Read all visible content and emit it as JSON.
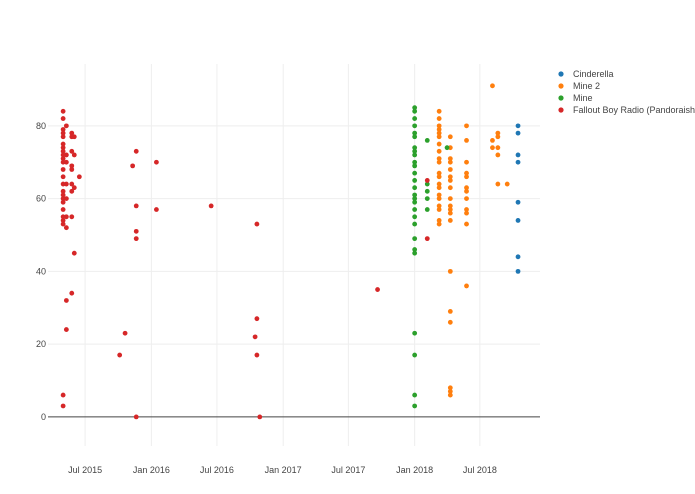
{
  "chart_data": {
    "type": "scatter",
    "title": "",
    "xlabel": "",
    "ylabel": "",
    "x_range": [
      "2015-03-20",
      "2018-12-15"
    ],
    "y_range": [
      -8,
      97
    ],
    "x_ticks": [
      {
        "date": "2015-07-01",
        "label": "Jul 2015"
      },
      {
        "date": "2016-01-01",
        "label": "Jan 2016"
      },
      {
        "date": "2016-07-01",
        "label": "Jul 2016"
      },
      {
        "date": "2017-01-01",
        "label": "Jan 2017"
      },
      {
        "date": "2017-07-01",
        "label": "Jul 2017"
      },
      {
        "date": "2018-01-01",
        "label": "Jan 2018"
      },
      {
        "date": "2018-07-01",
        "label": "Jul 2018"
      }
    ],
    "y_ticks": [
      0,
      20,
      40,
      60,
      80
    ],
    "grid": true,
    "legend_position": "top-right",
    "series": [
      {
        "name": "Cinderella",
        "color": "#1f77b4",
        "points": [
          [
            "2018-10-15",
            80
          ],
          [
            "2018-10-15",
            78
          ],
          [
            "2018-10-15",
            72
          ],
          [
            "2018-10-15",
            70
          ],
          [
            "2018-10-15",
            59
          ],
          [
            "2018-10-15",
            54
          ],
          [
            "2018-10-15",
            44
          ],
          [
            "2018-10-15",
            40
          ]
        ]
      },
      {
        "name": "Mine 2",
        "color": "#ff7f0e",
        "points": [
          [
            "2018-03-10",
            84
          ],
          [
            "2018-03-10",
            82
          ],
          [
            "2018-03-10",
            80
          ],
          [
            "2018-03-10",
            79
          ],
          [
            "2018-03-10",
            78
          ],
          [
            "2018-03-10",
            77
          ],
          [
            "2018-03-10",
            75
          ],
          [
            "2018-03-10",
            73
          ],
          [
            "2018-03-10",
            71
          ],
          [
            "2018-03-10",
            70
          ],
          [
            "2018-03-10",
            67
          ],
          [
            "2018-03-10",
            66
          ],
          [
            "2018-03-10",
            64
          ],
          [
            "2018-03-10",
            63
          ],
          [
            "2018-03-10",
            61
          ],
          [
            "2018-03-10",
            60
          ],
          [
            "2018-03-10",
            58
          ],
          [
            "2018-03-10",
            57
          ],
          [
            "2018-03-10",
            54
          ],
          [
            "2018-03-10",
            53
          ],
          [
            "2018-04-10",
            77
          ],
          [
            "2018-04-10",
            74
          ],
          [
            "2018-04-10",
            71
          ],
          [
            "2018-04-10",
            70
          ],
          [
            "2018-04-10",
            68
          ],
          [
            "2018-04-10",
            66
          ],
          [
            "2018-04-10",
            65
          ],
          [
            "2018-04-10",
            63
          ],
          [
            "2018-04-10",
            60
          ],
          [
            "2018-04-10",
            58
          ],
          [
            "2018-04-10",
            57
          ],
          [
            "2018-04-10",
            56
          ],
          [
            "2018-04-10",
            54
          ],
          [
            "2018-04-10",
            40
          ],
          [
            "2018-04-10",
            29
          ],
          [
            "2018-04-10",
            26
          ],
          [
            "2018-04-10",
            8
          ],
          [
            "2018-04-10",
            7
          ],
          [
            "2018-04-10",
            6
          ],
          [
            "2018-05-25",
            80
          ],
          [
            "2018-05-25",
            76
          ],
          [
            "2018-05-25",
            70
          ],
          [
            "2018-05-25",
            67
          ],
          [
            "2018-05-25",
            66
          ],
          [
            "2018-05-25",
            63
          ],
          [
            "2018-05-25",
            62
          ],
          [
            "2018-05-25",
            60
          ],
          [
            "2018-05-25",
            57
          ],
          [
            "2018-05-25",
            56
          ],
          [
            "2018-05-25",
            53
          ],
          [
            "2018-05-25",
            36
          ],
          [
            "2018-08-05",
            91
          ],
          [
            "2018-08-05",
            76
          ],
          [
            "2018-08-05",
            74
          ],
          [
            "2018-08-20",
            78
          ],
          [
            "2018-08-20",
            77
          ],
          [
            "2018-08-20",
            74
          ],
          [
            "2018-08-20",
            72
          ],
          [
            "2018-08-20",
            64
          ],
          [
            "2018-09-15",
            64
          ]
        ]
      },
      {
        "name": "Mine",
        "color": "#2ca02c",
        "points": [
          [
            "2018-01-01",
            85
          ],
          [
            "2018-01-01",
            84
          ],
          [
            "2018-01-01",
            82
          ],
          [
            "2018-01-01",
            80
          ],
          [
            "2018-01-01",
            78
          ],
          [
            "2018-01-01",
            77
          ],
          [
            "2018-01-01",
            74
          ],
          [
            "2018-01-01",
            73
          ],
          [
            "2018-01-01",
            72
          ],
          [
            "2018-01-01",
            70
          ],
          [
            "2018-01-01",
            69
          ],
          [
            "2018-01-01",
            67
          ],
          [
            "2018-01-01",
            65
          ],
          [
            "2018-01-01",
            63
          ],
          [
            "2018-01-01",
            61
          ],
          [
            "2018-01-01",
            60
          ],
          [
            "2018-01-01",
            59
          ],
          [
            "2018-01-01",
            57
          ],
          [
            "2018-01-01",
            55
          ],
          [
            "2018-01-01",
            53
          ],
          [
            "2018-01-01",
            49
          ],
          [
            "2018-01-01",
            46
          ],
          [
            "2018-01-01",
            45
          ],
          [
            "2018-01-01",
            23
          ],
          [
            "2018-01-01",
            17
          ],
          [
            "2018-01-01",
            6
          ],
          [
            "2018-01-01",
            3
          ],
          [
            "2018-02-05",
            76
          ],
          [
            "2018-02-05",
            64
          ],
          [
            "2018-02-05",
            62
          ],
          [
            "2018-02-05",
            60
          ],
          [
            "2018-02-05",
            57
          ],
          [
            "2018-04-01",
            74
          ]
        ]
      },
      {
        "name": "Fallout Boy Radio (Pandoraish)",
        "color": "#d62728",
        "points": [
          [
            "2015-05-01",
            84
          ],
          [
            "2015-05-01",
            82
          ],
          [
            "2015-05-01",
            79
          ],
          [
            "2015-05-01",
            78
          ],
          [
            "2015-05-01",
            77
          ],
          [
            "2015-05-01",
            75
          ],
          [
            "2015-05-01",
            74
          ],
          [
            "2015-05-01",
            73
          ],
          [
            "2015-05-01",
            72
          ],
          [
            "2015-05-01",
            71
          ],
          [
            "2015-05-01",
            70
          ],
          [
            "2015-05-01",
            68
          ],
          [
            "2015-05-01",
            66
          ],
          [
            "2015-05-01",
            64
          ],
          [
            "2015-05-01",
            62
          ],
          [
            "2015-05-01",
            61
          ],
          [
            "2015-05-01",
            60
          ],
          [
            "2015-05-01",
            59
          ],
          [
            "2015-05-01",
            57
          ],
          [
            "2015-05-01",
            55
          ],
          [
            "2015-05-01",
            54
          ],
          [
            "2015-05-01",
            53
          ],
          [
            "2015-05-01",
            6
          ],
          [
            "2015-05-01",
            3
          ],
          [
            "2015-05-10",
            80
          ],
          [
            "2015-05-10",
            72
          ],
          [
            "2015-05-10",
            70
          ],
          [
            "2015-05-10",
            64
          ],
          [
            "2015-05-10",
            60
          ],
          [
            "2015-05-10",
            55
          ],
          [
            "2015-05-10",
            52
          ],
          [
            "2015-05-10",
            32
          ],
          [
            "2015-05-10",
            24
          ],
          [
            "2015-05-25",
            78
          ],
          [
            "2015-05-25",
            77
          ],
          [
            "2015-05-25",
            73
          ],
          [
            "2015-05-25",
            69
          ],
          [
            "2015-05-25",
            68
          ],
          [
            "2015-05-25",
            64
          ],
          [
            "2015-05-25",
            62
          ],
          [
            "2015-05-25",
            55
          ],
          [
            "2015-05-25",
            34
          ],
          [
            "2015-06-01",
            77
          ],
          [
            "2015-06-01",
            72
          ],
          [
            "2015-06-01",
            63
          ],
          [
            "2015-06-01",
            45
          ],
          [
            "2015-06-15",
            66
          ],
          [
            "2015-10-05",
            17
          ],
          [
            "2015-10-20",
            23
          ],
          [
            "2015-11-10",
            69
          ],
          [
            "2015-11-20",
            73
          ],
          [
            "2015-11-20",
            58
          ],
          [
            "2015-11-20",
            51
          ],
          [
            "2015-11-20",
            49
          ],
          [
            "2015-11-20",
            0
          ],
          [
            "2016-01-15",
            70
          ],
          [
            "2016-01-15",
            57
          ],
          [
            "2016-06-15",
            58
          ],
          [
            "2016-10-20",
            53
          ],
          [
            "2016-10-20",
            27
          ],
          [
            "2016-10-15",
            22
          ],
          [
            "2016-10-20",
            17
          ],
          [
            "2016-10-28",
            0
          ],
          [
            "2017-09-20",
            35
          ],
          [
            "2018-02-05",
            65
          ],
          [
            "2018-02-05",
            49
          ]
        ]
      }
    ]
  }
}
